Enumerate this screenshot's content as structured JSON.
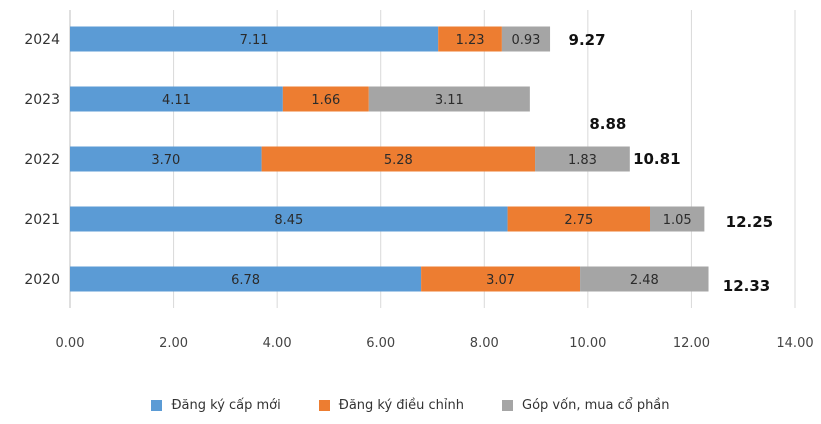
{
  "chart_data": {
    "type": "bar",
    "orientation": "horizontal",
    "stacked": true,
    "categories": [
      "2024",
      "2023",
      "2022",
      "2021",
      "2020"
    ],
    "series": [
      {
        "name": "Đăng ký cấp mới",
        "color": "#5b9bd5",
        "values": [
          7.11,
          4.11,
          3.7,
          8.45,
          6.78
        ],
        "labels": [
          "7.11",
          "4.11",
          "3.70",
          "8.45",
          "6.78"
        ]
      },
      {
        "name": "Đăng ký điều chỉnh",
        "color": "#ed7d31",
        "values": [
          1.23,
          1.66,
          5.28,
          2.75,
          3.07
        ],
        "labels": [
          "1.23",
          "1.66",
          "5.28",
          "2.75",
          "3.07"
        ]
      },
      {
        "name": "Góp vốn, mua cổ phần",
        "color": "#a5a5a5",
        "values": [
          0.93,
          3.11,
          1.83,
          1.05,
          2.48
        ],
        "labels": [
          "0.93",
          "3.11",
          "1.83",
          "1.05",
          "2.48"
        ]
      }
    ],
    "totals": [
      "9.27",
      "8.88",
      "10.81",
      "12.25",
      "12.33"
    ],
    "xlim": [
      0,
      14
    ],
    "x_ticks": [
      "0.00",
      "2.00",
      "4.00",
      "6.00",
      "8.00",
      "10.00",
      "12.00",
      "14.00"
    ],
    "grid": "vertical",
    "legend": "bottom",
    "title": "",
    "xlabel": "",
    "ylabel": ""
  }
}
